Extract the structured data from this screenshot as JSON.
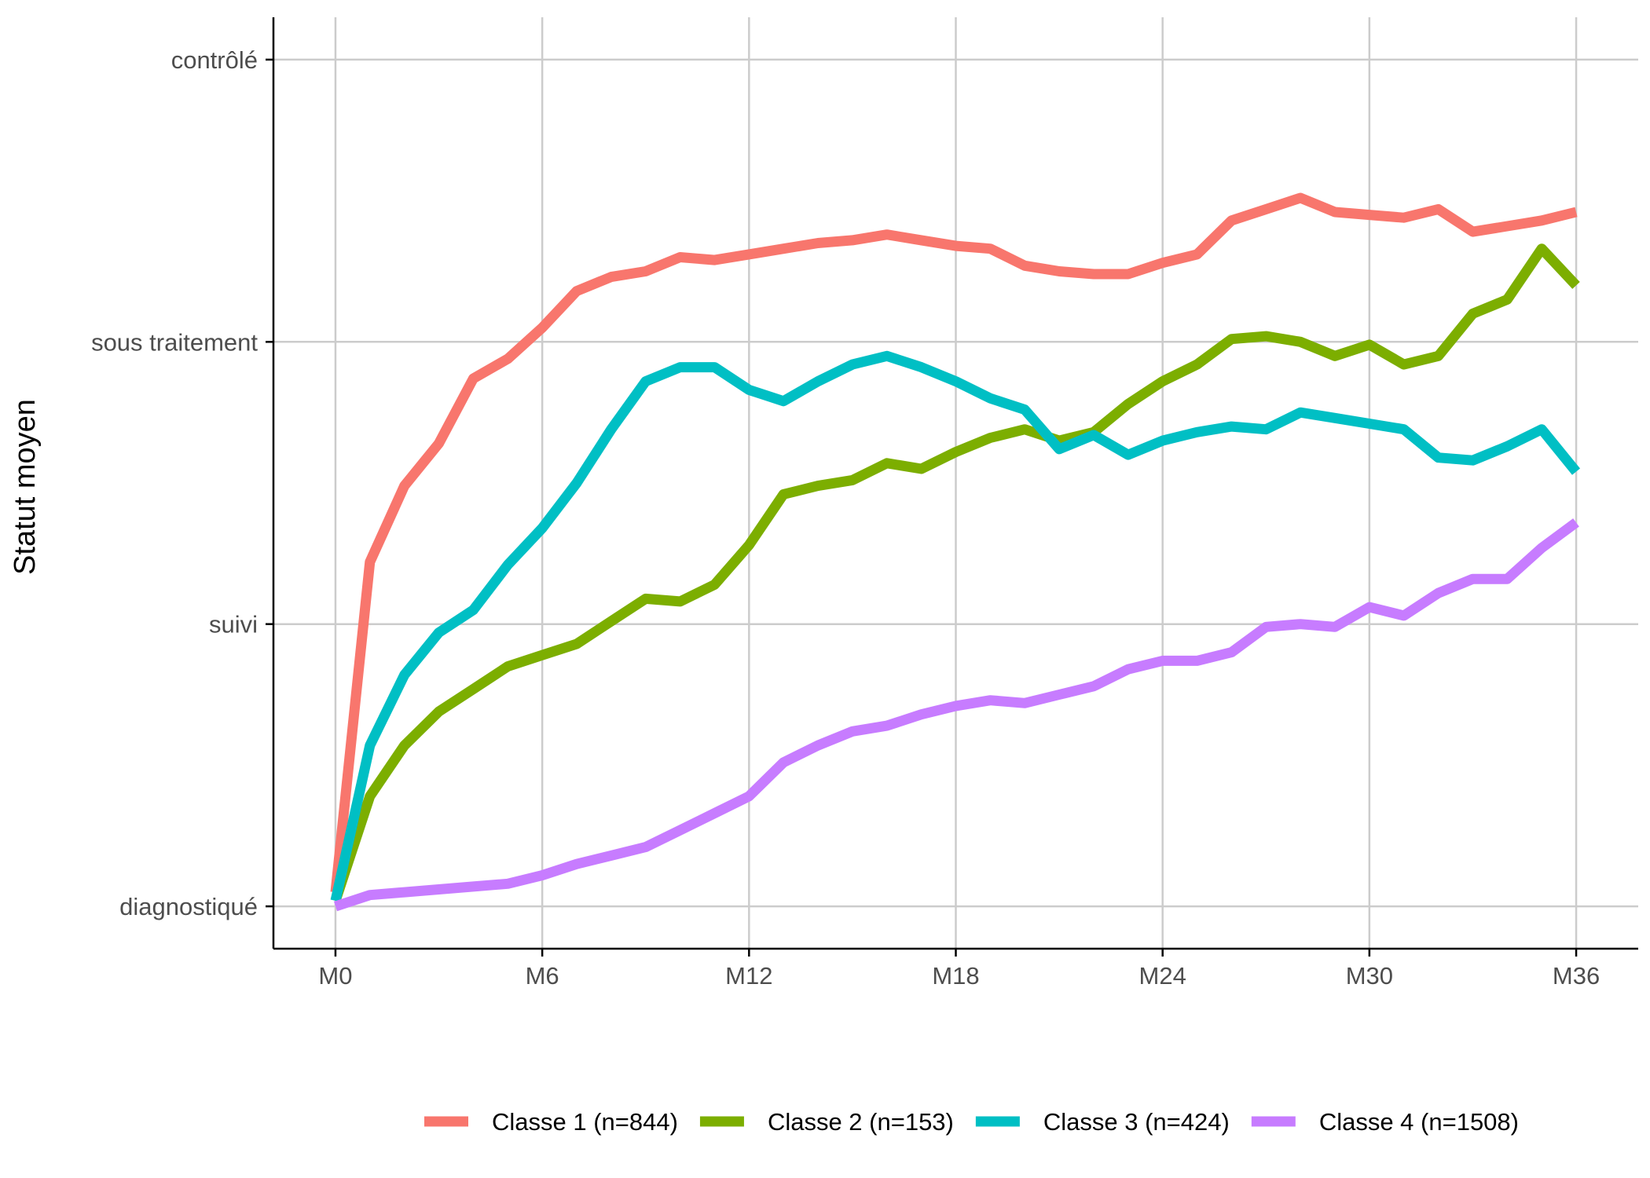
{
  "chart_data": {
    "type": "line",
    "title": "",
    "xlabel": "",
    "ylabel": "Statut moyen",
    "x_tick_labels": [
      "M0",
      "M6",
      "M12",
      "M18",
      "M24",
      "M30",
      "M36"
    ],
    "x_tick_values": [
      0,
      6,
      12,
      18,
      24,
      30,
      36
    ],
    "y_tick_labels": [
      "diagnostiqué",
      "suivi",
      "sous traitement",
      "contrôlé"
    ],
    "y_tick_values": [
      1,
      2,
      3,
      4
    ],
    "xlim": [
      -1.8,
      37.8
    ],
    "ylim": [
      0.85,
      4.15
    ],
    "grid": true,
    "legend_position": "bottom",
    "x": [
      0,
      1,
      2,
      3,
      4,
      5,
      6,
      7,
      8,
      9,
      10,
      11,
      12,
      13,
      14,
      15,
      16,
      17,
      18,
      19,
      20,
      21,
      22,
      23,
      24,
      25,
      26,
      27,
      28,
      29,
      30,
      31,
      32,
      33,
      34,
      35,
      36
    ],
    "series": [
      {
        "name": "Classe 1 (n=844)",
        "color": "#F8766D",
        "values": [
          1.05,
          2.22,
          2.49,
          2.64,
          2.87,
          2.94,
          3.05,
          3.18,
          3.23,
          3.25,
          3.3,
          3.29,
          3.31,
          3.33,
          3.35,
          3.36,
          3.38,
          3.36,
          3.34,
          3.33,
          3.27,
          3.25,
          3.24,
          3.24,
          3.28,
          3.31,
          3.43,
          3.47,
          3.51,
          3.46,
          3.45,
          3.44,
          3.47,
          3.39,
          3.41,
          3.43,
          3.46
        ]
      },
      {
        "name": "Classe 2 (n=153)",
        "color": "#7CAE00",
        "values": [
          1.02,
          1.39,
          1.57,
          1.69,
          1.77,
          1.85,
          1.89,
          1.93,
          2.01,
          2.09,
          2.08,
          2.14,
          2.28,
          2.46,
          2.49,
          2.51,
          2.57,
          2.55,
          2.61,
          2.66,
          2.69,
          2.65,
          2.68,
          2.78,
          2.86,
          2.92,
          3.01,
          3.02,
          3.0,
          2.95,
          2.99,
          2.92,
          2.95,
          3.1,
          3.15,
          3.33,
          3.2
        ]
      },
      {
        "name": "Classe 3 (n=424)",
        "color": "#00BFC4",
        "values": [
          1.02,
          1.57,
          1.82,
          1.97,
          2.05,
          2.21,
          2.34,
          2.5,
          2.69,
          2.86,
          2.91,
          2.91,
          2.83,
          2.79,
          2.86,
          2.92,
          2.95,
          2.91,
          2.86,
          2.8,
          2.76,
          2.62,
          2.67,
          2.6,
          2.65,
          2.68,
          2.7,
          2.69,
          2.75,
          2.73,
          2.71,
          2.69,
          2.59,
          2.58,
          2.63,
          2.69,
          2.54
        ]
      },
      {
        "name": "Classe 4 (n=1508)",
        "color": "#C77CFF",
        "values": [
          1.0,
          1.04,
          1.05,
          1.06,
          1.07,
          1.08,
          1.11,
          1.15,
          1.18,
          1.21,
          1.27,
          1.33,
          1.39,
          1.51,
          1.57,
          1.62,
          1.64,
          1.68,
          1.71,
          1.73,
          1.72,
          1.75,
          1.78,
          1.84,
          1.87,
          1.87,
          1.9,
          1.99,
          2.0,
          1.99,
          2.06,
          2.03,
          2.11,
          2.16,
          2.16,
          2.27,
          2.36
        ]
      }
    ]
  }
}
